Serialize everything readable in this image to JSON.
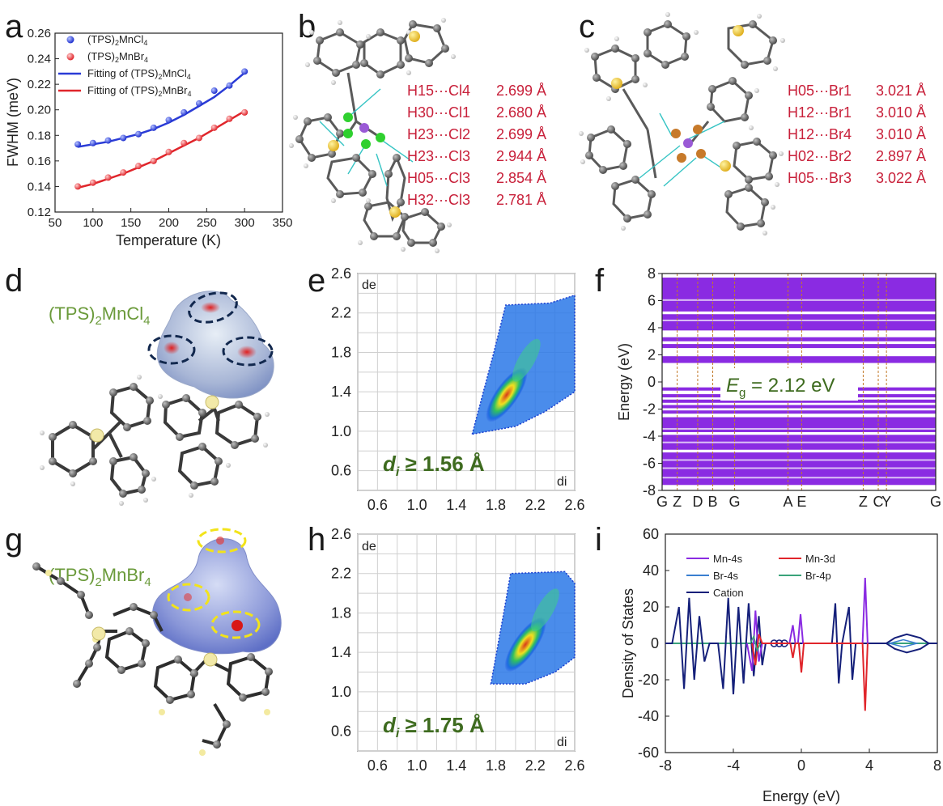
{
  "panels": {
    "a": "a",
    "b": "b",
    "c": "c",
    "d": "d",
    "e": "e",
    "f": "f",
    "g": "g",
    "h": "h",
    "i": "i"
  },
  "compounds": {
    "cl": "(TPS)",
    "cl_sub": "2",
    "cl_rest": "MnCl",
    "cl_sub2": "4",
    "br": "(TPS)",
    "br_sub": "2",
    "br_rest": "MnBr",
    "br_sub2": "4"
  },
  "panel_b_contacts": [
    {
      "pair": "H15···Cl4",
      "dist": "2.699 Å"
    },
    {
      "pair": "H30···Cl1",
      "dist": "2.680 Å"
    },
    {
      "pair": "H23···Cl2",
      "dist": "2.699 Å"
    },
    {
      "pair": "H23···Cl3",
      "dist": "2.944 Å"
    },
    {
      "pair": "H05···Cl3",
      "dist": "2.854 Å"
    },
    {
      "pair": "H32···Cl3",
      "dist": "2.781 Å"
    }
  ],
  "panel_c_contacts": [
    {
      "pair": "H05···Br1",
      "dist": "3.021 Å"
    },
    {
      "pair": "H12···Br1",
      "dist": "3.010 Å"
    },
    {
      "pair": "H12···Br4",
      "dist": "3.010 Å"
    },
    {
      "pair": "H02···Br2",
      "dist": "2.897 Å"
    },
    {
      "pair": "H05···Br3",
      "dist": "3.022 Å"
    }
  ],
  "colors": {
    "blue": "#2a3bd6",
    "red": "#e0252b",
    "purple": "#8a2be2",
    "navy": "#15207a",
    "steelblue": "#3a7fd0",
    "green": "#3aa37a",
    "label_red": "#c8203a",
    "olive": "#3e6b1f"
  },
  "chart_data": [
    {
      "panel": "a",
      "type": "scatter",
      "xlabel": "Temperature (K)",
      "ylabel": "FWHM (meV)",
      "xlim": [
        50,
        350
      ],
      "ylim": [
        0.12,
        0.26
      ],
      "xticks": [
        "50",
        "100",
        "150",
        "200",
        "250",
        "300",
        "350"
      ],
      "yticks": [
        "0.12",
        "0.14",
        "0.16",
        "0.18",
        "0.20",
        "0.22",
        "0.24",
        "0.26"
      ],
      "legend_position": "top-left",
      "series": [
        {
          "name": "(TPS)2MnCl4",
          "label_main": "(TPS)",
          "label_sub": "2",
          "label_rest": "MnCl",
          "label_sub2": "4",
          "marker": "sphere",
          "color": "#2a3bd6",
          "x": [
            80,
            100,
            120,
            140,
            160,
            180,
            200,
            220,
            240,
            260,
            280,
            300
          ],
          "y": [
            0.173,
            0.174,
            0.176,
            0.178,
            0.181,
            0.186,
            0.192,
            0.198,
            0.205,
            0.215,
            0.219,
            0.23
          ]
        },
        {
          "name": "(TPS)2MnBr4",
          "label_main": "(TPS)",
          "label_sub": "2",
          "label_rest": "MnBr",
          "label_sub2": "4",
          "marker": "sphere",
          "color": "#e0252b",
          "x": [
            80,
            100,
            120,
            140,
            160,
            180,
            200,
            220,
            240,
            260,
            280,
            300
          ],
          "y": [
            0.14,
            0.143,
            0.147,
            0.151,
            0.156,
            0.16,
            0.167,
            0.174,
            0.178,
            0.186,
            0.193,
            0.198
          ]
        },
        {
          "name": "Fitting of (TPS)2MnCl4",
          "label_main": "Fitting of (TPS)",
          "label_sub": "2",
          "label_rest": "MnCl",
          "label_sub2": "4",
          "line": true,
          "color": "#2a3bd6",
          "x": [
            80,
            100,
            120,
            140,
            160,
            180,
            200,
            220,
            240,
            260,
            280,
            300
          ],
          "y": [
            0.171,
            0.173,
            0.175,
            0.178,
            0.181,
            0.185,
            0.19,
            0.196,
            0.203,
            0.21,
            0.219,
            0.229
          ]
        },
        {
          "name": "Fitting of (TPS)2MnBr4",
          "label_main": "Fitting of (TPS)",
          "label_sub": "2",
          "label_rest": "MnBr",
          "label_sub2": "4",
          "line": true,
          "color": "#e0252b",
          "x": [
            80,
            100,
            120,
            140,
            160,
            180,
            200,
            220,
            240,
            260,
            280,
            300
          ],
          "y": [
            0.139,
            0.142,
            0.146,
            0.15,
            0.155,
            0.16,
            0.166,
            0.172,
            0.178,
            0.185,
            0.192,
            0.199
          ]
        }
      ]
    },
    {
      "panel": "e",
      "type": "heatmap",
      "xlabel": "di",
      "ylabel": "de",
      "xlim": [
        0.4,
        2.6
      ],
      "ylim": [
        0.4,
        2.6
      ],
      "xticks": [
        "0.6",
        "1.0",
        "1.4",
        "1.8",
        "2.2",
        "2.6"
      ],
      "yticks": [
        "0.6",
        "1.0",
        "1.4",
        "1.8",
        "2.2",
        "2.6"
      ],
      "grid": true,
      "annotation": {
        "var": "d",
        "sub": "i",
        "text": " ≥ 1.56 Å"
      },
      "tip": [
        1.56,
        0.97
      ]
    },
    {
      "panel": "h",
      "type": "heatmap",
      "xlabel": "di",
      "ylabel": "de",
      "xlim": [
        0.4,
        2.6
      ],
      "ylim": [
        0.4,
        2.6
      ],
      "xticks": [
        "0.6",
        "1.0",
        "1.4",
        "1.8",
        "2.2",
        "2.6"
      ],
      "yticks": [
        "0.6",
        "1.0",
        "1.4",
        "1.8",
        "2.2",
        "2.6"
      ],
      "grid": true,
      "annotation": {
        "var": "d",
        "sub": "i",
        "text": " ≥ 1.75 Å"
      },
      "tip": [
        1.75,
        1.08
      ]
    },
    {
      "panel": "f",
      "type": "line",
      "ylabel": "Energy (eV)",
      "ylim": [
        -8,
        8
      ],
      "yticks": [
        "-8",
        "-6",
        "-4",
        "-2",
        "0",
        "2",
        "4",
        "6",
        "8"
      ],
      "kpoints": [
        "G",
        "Z",
        "D",
        "B",
        "G",
        "A",
        "E",
        "Z",
        "C",
        "Y",
        "G"
      ],
      "kpoint_positions": [
        0.0,
        0.055,
        0.13,
        0.185,
        0.265,
        0.46,
        0.51,
        0.735,
        0.79,
        0.82,
        1.0
      ],
      "gap_label": {
        "var": "E",
        "sub": "g",
        "text": " = 2.12 eV"
      },
      "color": "#8a2be2"
    },
    {
      "panel": "i",
      "type": "line",
      "xlabel": "Energy (eV)",
      "ylabel": "Density of States",
      "xlim": [
        -8,
        8
      ],
      "ylim": [
        -60,
        60
      ],
      "xticks": [
        "-8",
        "-4",
        "0",
        "4",
        "8"
      ],
      "yticks": [
        "-60",
        "-40",
        "-20",
        "0",
        "20",
        "40",
        "60"
      ],
      "legend_position": "top-left",
      "series": [
        {
          "name": "Mn-4s",
          "color": "#8a2be2"
        },
        {
          "name": "Mn-3d",
          "color": "#e0252b"
        },
        {
          "name": "Br-4s",
          "color": "#3a7fd0"
        },
        {
          "name": "Br-4p",
          "color": "#3aa37a"
        },
        {
          "name": "Cation",
          "color": "#15207a"
        }
      ]
    }
  ]
}
